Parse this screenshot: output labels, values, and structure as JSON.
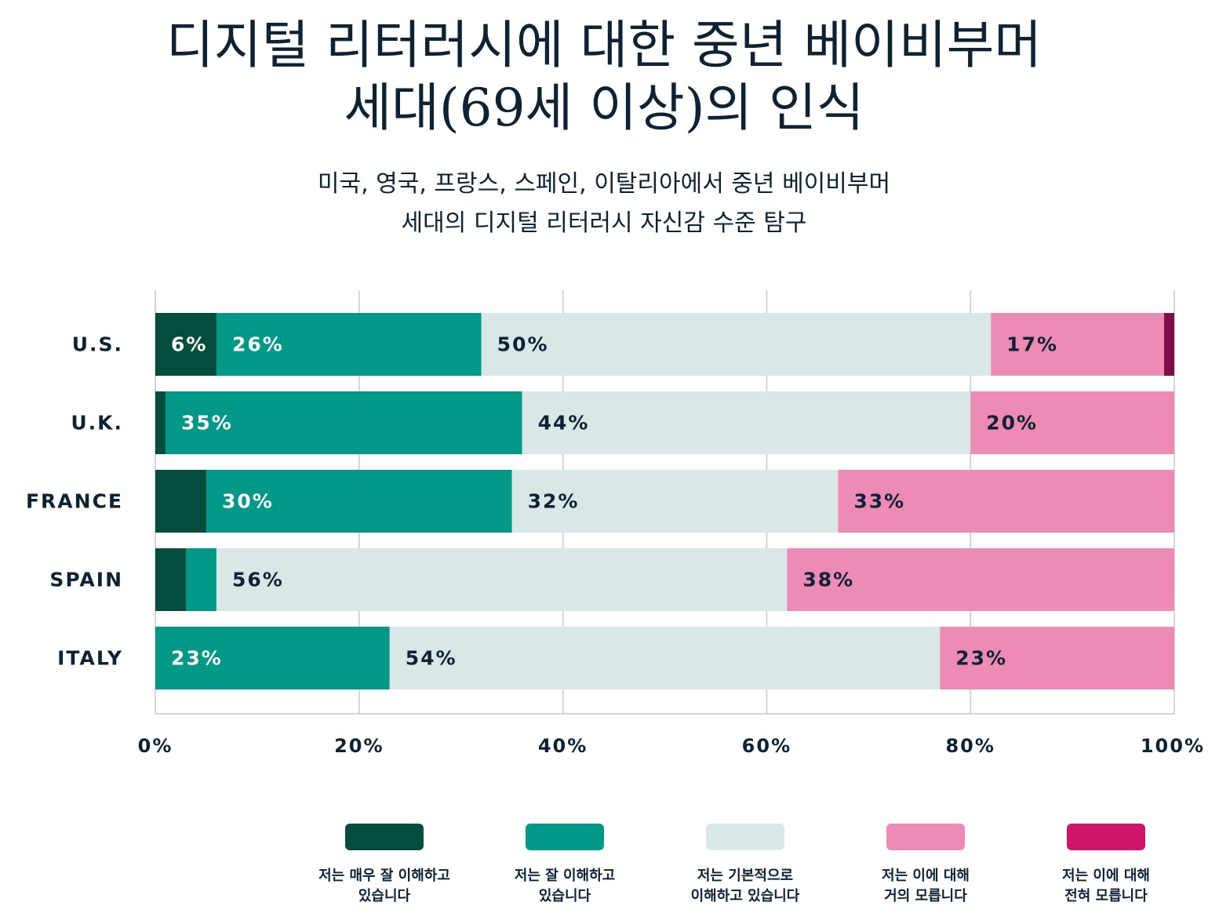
{
  "title": {
    "line1": "디지털 리터러시에 대한 중년 베이비부머",
    "line2": "세대(69세 이상)의 인식"
  },
  "subtitle": {
    "line1": "미국, 영국, 프랑스, 스페인, 이탈리아에서 중년 베이비부머",
    "line2": "세대의 디지털 리터러시 자신감 수준 탐구"
  },
  "colors": {
    "very_well": "#034d3e",
    "well": "#009886",
    "basic": "#d9e7e6",
    "little": "#ee8bb4",
    "none": "#cf1569",
    "none_us": "#7e0e4a",
    "dark_text": "#0d2233",
    "light_text": "#ffffff"
  },
  "chart_data": {
    "type": "bar",
    "orientation": "horizontal",
    "stacked": true,
    "categories": [
      "U.S.",
      "U.K.",
      "FRANCE",
      "SPAIN",
      "ITALY"
    ],
    "series": [
      {
        "name": "저는 매우 잘 이해하고\n있습니다",
        "values": [
          6,
          1,
          5,
          3,
          0
        ],
        "labels": [
          "6%",
          "",
          "",
          "",
          ""
        ]
      },
      {
        "name": "저는 잘 이해하고\n있습니다",
        "values": [
          26,
          35,
          30,
          3,
          23
        ],
        "labels": [
          "26%",
          "35%",
          "30%",
          "",
          "23%"
        ]
      },
      {
        "name": "저는 기본적으로\n이해하고 있습니다",
        "values": [
          50,
          44,
          32,
          56,
          54
        ],
        "labels": [
          "50%",
          "44%",
          "32%",
          "56%",
          "54%"
        ]
      },
      {
        "name": "저는 이에 대해\n거의 모릅니다",
        "values": [
          17,
          20,
          33,
          38,
          23
        ],
        "labels": [
          "17%",
          "20%",
          "33%",
          "38%",
          "23%"
        ]
      },
      {
        "name": "저는 이에 대해\n전혀 모릅니다",
        "values": [
          1,
          0,
          0,
          0,
          0
        ],
        "labels": [
          "",
          "",
          "",
          "",
          ""
        ]
      }
    ],
    "xlim": [
      0,
      100
    ],
    "xticks": [
      "0%",
      "20%",
      "40%",
      "60%",
      "80%",
      "100%"
    ],
    "grid": true,
    "legend": "bottom"
  }
}
